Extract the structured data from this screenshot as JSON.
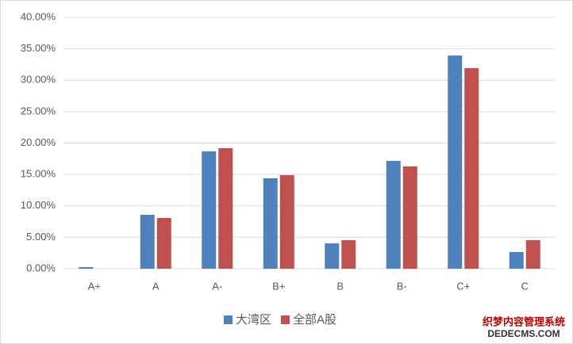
{
  "chart_data": {
    "type": "bar",
    "categories": [
      "A+",
      "A",
      "A-",
      "B+",
      "B",
      "B-",
      "C+",
      "C"
    ],
    "series": [
      {
        "name": "大湾区",
        "color": "#4f81bd",
        "values": [
          0.25,
          8.58,
          18.68,
          14.4,
          4.04,
          17.16,
          33.94,
          2.65
        ]
      },
      {
        "name": "全部A股",
        "color": "#c0504d",
        "values": [
          0,
          8.08,
          19.18,
          14.9,
          4.54,
          16.28,
          31.92,
          4.54
        ]
      }
    ],
    "ylim": [
      0,
      40
    ],
    "yticks": [
      {
        "value": 0,
        "label": "0.00%"
      },
      {
        "value": 5,
        "label": "5.00%"
      },
      {
        "value": 10,
        "label": "10.00%"
      },
      {
        "value": 15,
        "label": "15.00%"
      },
      {
        "value": 20,
        "label": "20.00%"
      },
      {
        "value": 25,
        "label": "25.00%"
      },
      {
        "value": 30,
        "label": "30.00%"
      },
      {
        "value": 35,
        "label": "35.00%"
      },
      {
        "value": 40,
        "label": "40.00%"
      }
    ],
    "grid": true,
    "legend": "bottom"
  },
  "watermark": [
    "织梦内容管理系统",
    "DEDECMS.COM"
  ]
}
